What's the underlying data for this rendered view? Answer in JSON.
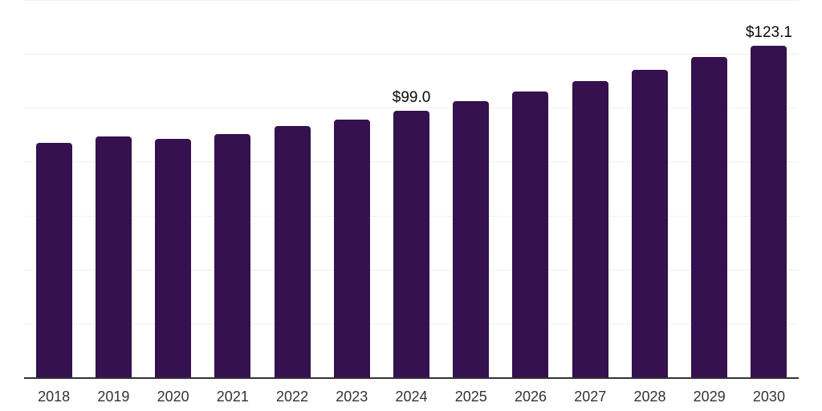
{
  "chart_data": {
    "type": "bar",
    "title": "",
    "xlabel": "",
    "ylabel": "",
    "categories": [
      "2018",
      "2019",
      "2020",
      "2021",
      "2022",
      "2023",
      "2024",
      "2025",
      "2026",
      "2027",
      "2028",
      "2029",
      "2030"
    ],
    "values": [
      87.0,
      89.4,
      88.5,
      90.3,
      93.3,
      95.7,
      99.0,
      102.5,
      105.9,
      109.8,
      114.2,
      119.0,
      123.1
    ],
    "data_labels": {
      "2024": "$99.0",
      "2030": "$123.1"
    },
    "ylim": [
      0,
      140
    ],
    "gridline_interval": 20,
    "grid": true,
    "legend": false,
    "y_tick_labels_visible": false,
    "colors": {
      "bar": "#351150",
      "axis_line": "#333333",
      "gridline": "#f0f0f1",
      "data_label": "#0a0a0a",
      "tick_label": "#333333",
      "background": "#ffffff"
    }
  }
}
